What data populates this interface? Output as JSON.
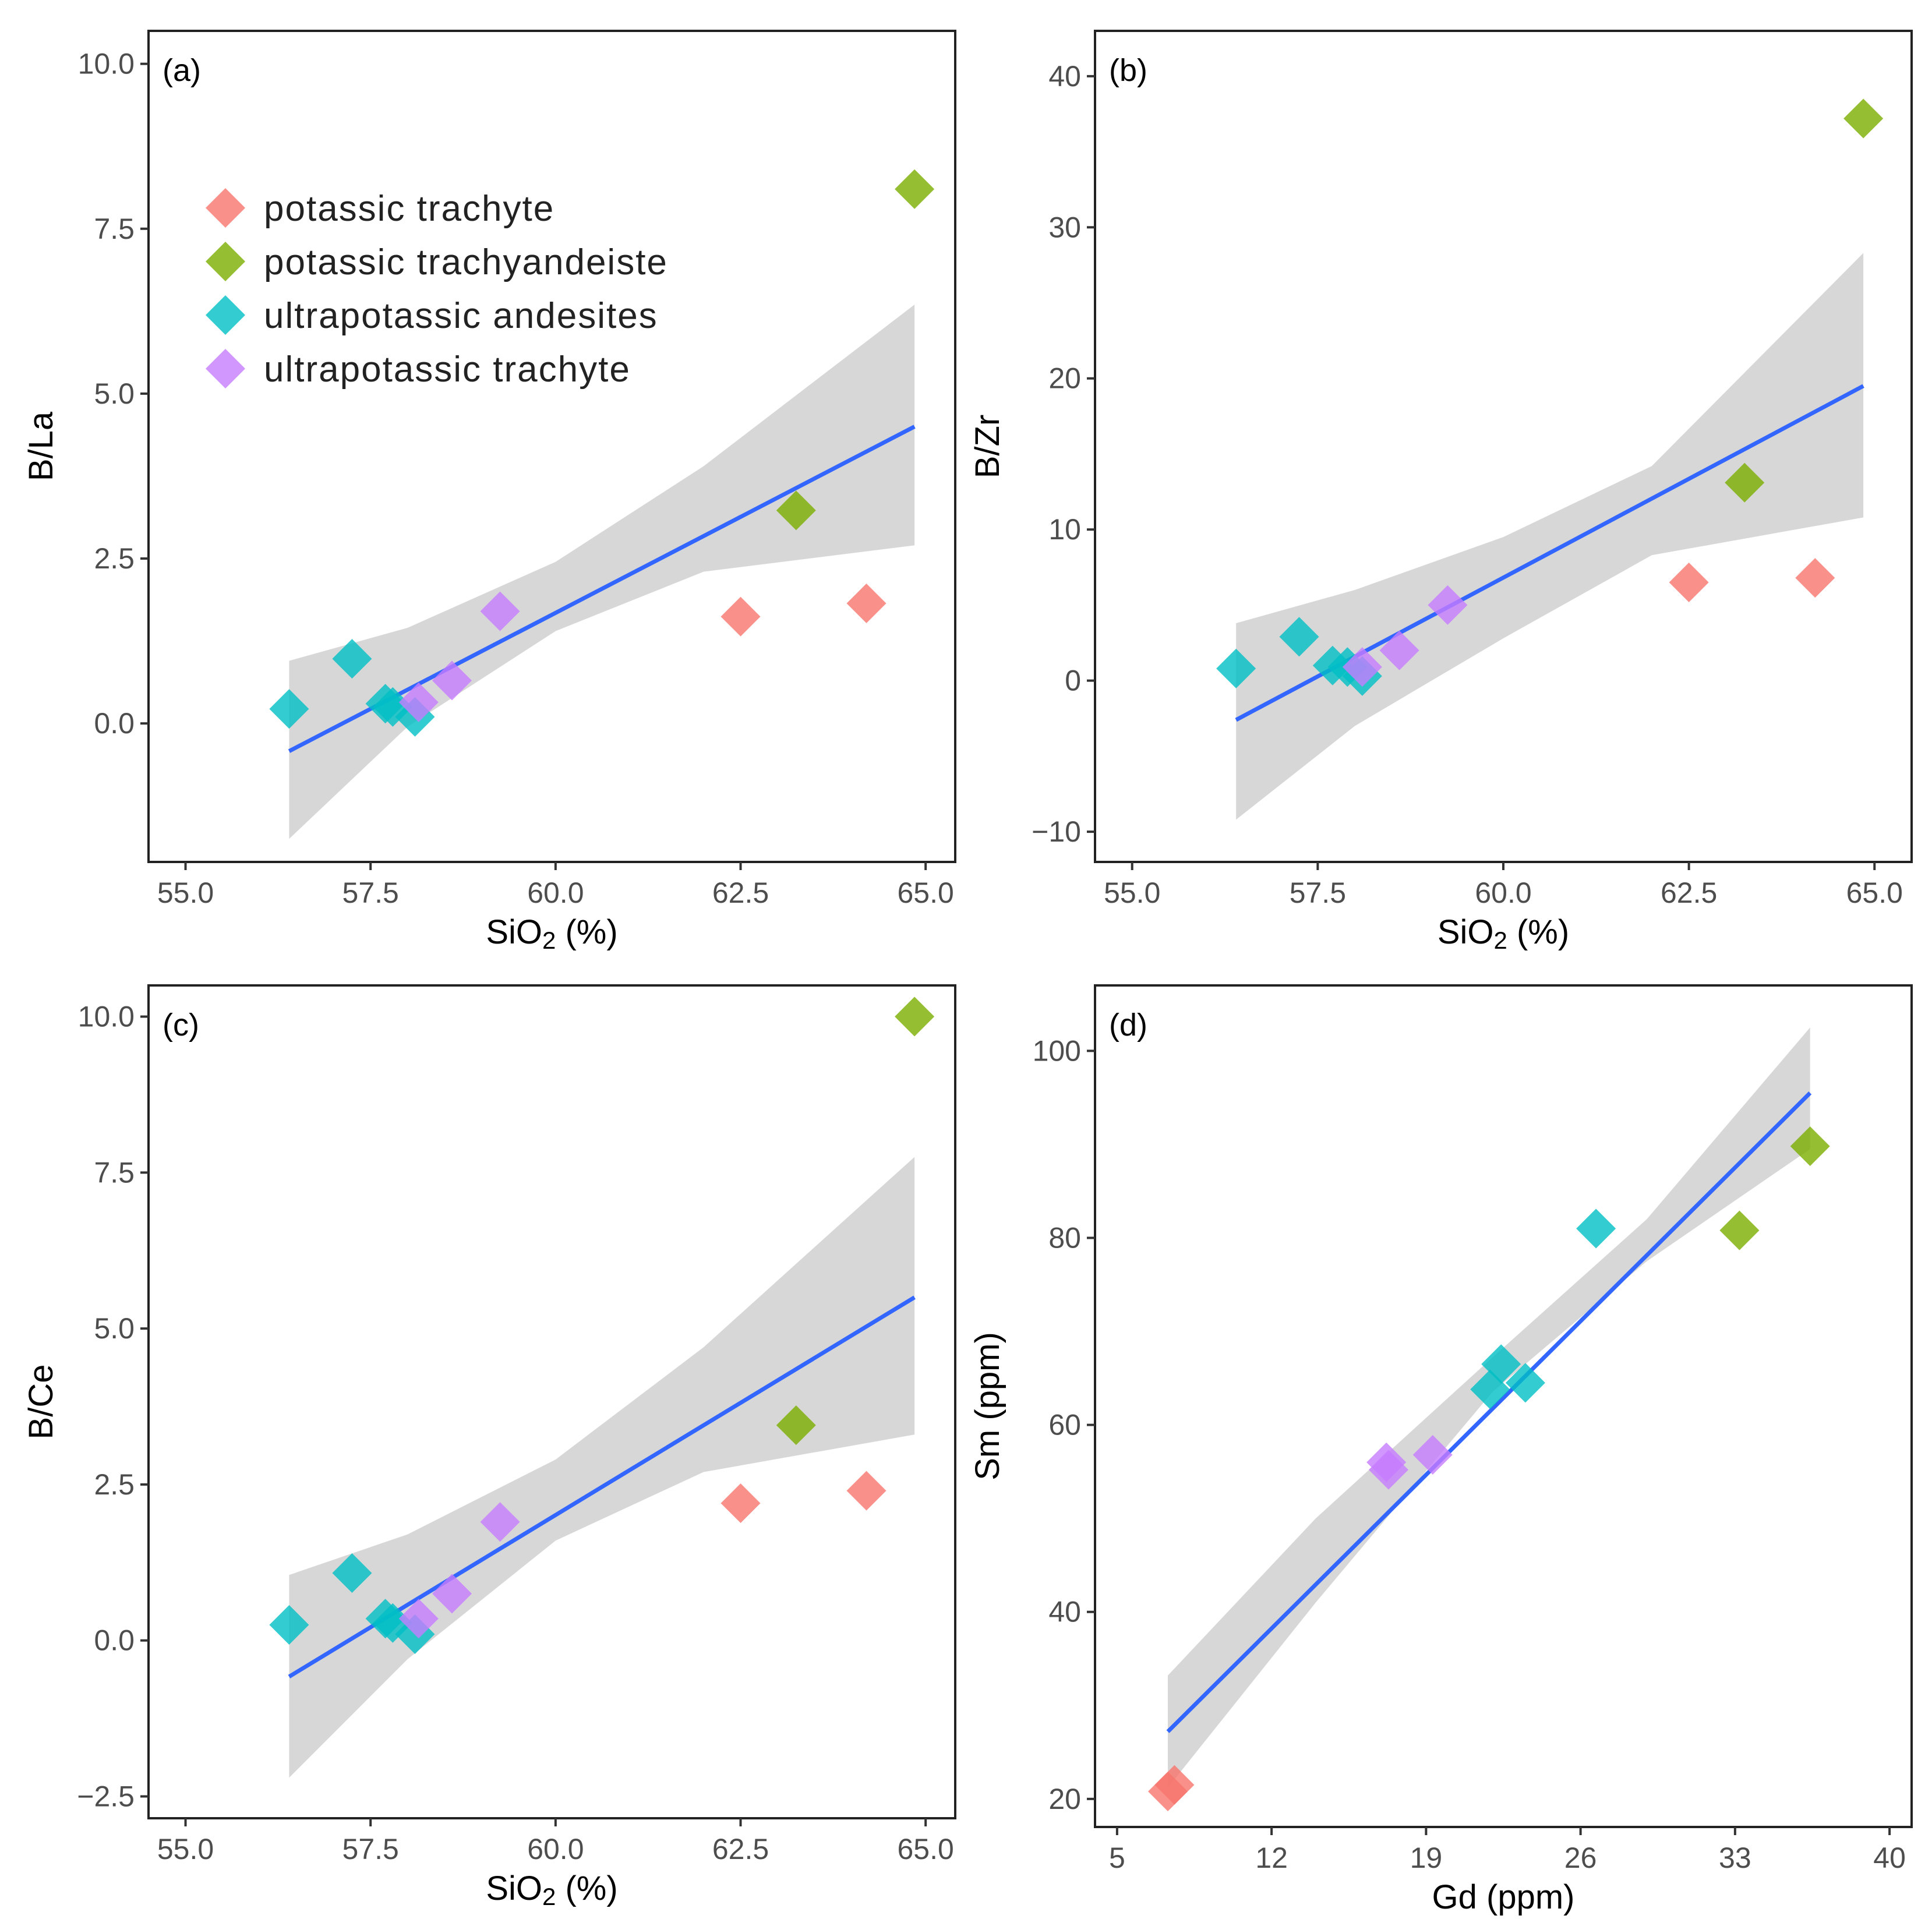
{
  "colors": {
    "potassic_trachyte": "#F8766D",
    "potassic_trachyandeiste": "#7CAE00",
    "ultrapotassic_andesites": "#00BFC4",
    "ultrapotassic_trachyte": "#C77CFF",
    "fit_line": "#3366FF",
    "confidence_band": "#D3D3D3"
  },
  "legend": {
    "items": [
      {
        "key": "potassic_trachyte",
        "label": "potassic trachyte"
      },
      {
        "key": "potassic_trachyandeiste",
        "label": "potassic trachyandeiste"
      },
      {
        "key": "ultrapotassic_andesites",
        "label": "ultrapotassic andesites"
      },
      {
        "key": "ultrapotassic_trachyte",
        "label": "ultrapotassic trachyte"
      }
    ]
  },
  "chart_data": [
    {
      "id": "a",
      "panel_label": "(a)",
      "type": "scatter",
      "xlabel": "SiO2 (%)",
      "ylabel": "B/La",
      "xlim": [
        54.5,
        65.4
      ],
      "ylim": [
        -2.1,
        10.5
      ],
      "xticks": [
        55.0,
        57.5,
        60.0,
        62.5,
        65.0
      ],
      "xtick_labels": [
        "55.0",
        "57.5",
        "60.0",
        "62.5",
        "65.0"
      ],
      "yticks": [
        0.0,
        2.5,
        5.0,
        7.5,
        10.0
      ],
      "ytick_labels": [
        "0.0",
        "2.5",
        "5.0",
        "7.5",
        "10.0"
      ],
      "grid": false,
      "has_legend": true,
      "legend_position": "top-left",
      "points": [
        {
          "group": "ultrapotassic_andesites",
          "x": 56.4,
          "y": 0.22
        },
        {
          "group": "ultrapotassic_andesites",
          "x": 57.25,
          "y": 0.98
        },
        {
          "group": "ultrapotassic_andesites",
          "x": 57.7,
          "y": 0.3
        },
        {
          "group": "ultrapotassic_andesites",
          "x": 57.8,
          "y": 0.25
        },
        {
          "group": "ultrapotassic_andesites",
          "x": 58.1,
          "y": 0.1
        },
        {
          "group": "ultrapotassic_trachyte",
          "x": 58.15,
          "y": 0.32
        },
        {
          "group": "ultrapotassic_trachyte",
          "x": 58.6,
          "y": 0.65
        },
        {
          "group": "ultrapotassic_trachyte",
          "x": 59.25,
          "y": 1.7
        },
        {
          "group": "potassic_trachyte",
          "x": 62.5,
          "y": 1.62
        },
        {
          "group": "potassic_trachyte",
          "x": 64.2,
          "y": 1.82
        },
        {
          "group": "potassic_trachyandeiste",
          "x": 63.25,
          "y": 3.23
        },
        {
          "group": "potassic_trachyandeiste",
          "x": 64.85,
          "y": 8.1
        }
      ],
      "fit": {
        "x": [
          56.4,
          64.85
        ],
        "y": [
          -0.42,
          4.5
        ]
      },
      "band": {
        "x": [
          56.4,
          58.0,
          60.0,
          62.0,
          64.85
        ],
        "lower": [
          -1.75,
          -0.05,
          1.4,
          2.3,
          2.7
        ],
        "upper": [
          0.95,
          1.45,
          2.45,
          3.9,
          6.35
        ]
      }
    },
    {
      "id": "b",
      "panel_label": "(b)",
      "type": "scatter",
      "xlabel": "SiO2 (%)",
      "ylabel": "B/Zr",
      "xlim": [
        54.5,
        65.5
      ],
      "ylim": [
        -12.0,
        43.0
      ],
      "xticks": [
        55.0,
        57.5,
        60.0,
        62.5,
        65.0
      ],
      "xtick_labels": [
        "55.0",
        "57.5",
        "60.0",
        "62.5",
        "65.0"
      ],
      "yticks": [
        -10,
        0,
        10,
        20,
        30,
        40
      ],
      "ytick_labels": [
        "−10",
        "0",
        "10",
        "20",
        "30",
        "40"
      ],
      "grid": false,
      "points": [
        {
          "group": "ultrapotassic_andesites",
          "x": 56.4,
          "y": 0.8
        },
        {
          "group": "ultrapotassic_andesites",
          "x": 57.25,
          "y": 2.9
        },
        {
          "group": "ultrapotassic_andesites",
          "x": 57.7,
          "y": 1.0
        },
        {
          "group": "ultrapotassic_andesites",
          "x": 57.9,
          "y": 0.9
        },
        {
          "group": "ultrapotassic_andesites",
          "x": 58.1,
          "y": 0.3
        },
        {
          "group": "ultrapotassic_trachyte",
          "x": 58.1,
          "y": 0.9
        },
        {
          "group": "ultrapotassic_trachyte",
          "x": 58.6,
          "y": 2.0
        },
        {
          "group": "ultrapotassic_trachyte",
          "x": 59.25,
          "y": 5.0
        },
        {
          "group": "potassic_trachyte",
          "x": 62.5,
          "y": 6.5
        },
        {
          "group": "potassic_trachyte",
          "x": 64.2,
          "y": 6.8
        },
        {
          "group": "potassic_trachyandeiste",
          "x": 63.25,
          "y": 13.1
        },
        {
          "group": "potassic_trachyandeiste",
          "x": 64.85,
          "y": 37.2
        }
      ],
      "fit": {
        "x": [
          56.4,
          64.85
        ],
        "y": [
          -2.6,
          19.5
        ]
      },
      "band": {
        "x": [
          56.4,
          58.0,
          60.0,
          62.0,
          64.85
        ],
        "lower": [
          -9.2,
          -3.0,
          2.8,
          8.3,
          10.8
        ],
        "upper": [
          3.8,
          6.0,
          9.5,
          14.2,
          28.3
        ]
      }
    },
    {
      "id": "c",
      "panel_label": "(c)",
      "type": "scatter",
      "xlabel": "SiO2 (%)",
      "ylabel": "B/Ce",
      "xlim": [
        54.5,
        65.4
      ],
      "ylim": [
        -2.85,
        10.5
      ],
      "xticks": [
        55.0,
        57.5,
        60.0,
        62.5,
        65.0
      ],
      "xtick_labels": [
        "55.0",
        "57.5",
        "60.0",
        "62.5",
        "65.0"
      ],
      "yticks": [
        -2.5,
        0.0,
        2.5,
        5.0,
        7.5,
        10.0
      ],
      "ytick_labels": [
        "−2.5",
        "0.0",
        "2.5",
        "5.0",
        "7.5",
        "10.0"
      ],
      "grid": false,
      "points": [
        {
          "group": "ultrapotassic_andesites",
          "x": 56.4,
          "y": 0.25
        },
        {
          "group": "ultrapotassic_andesites",
          "x": 57.25,
          "y": 1.08
        },
        {
          "group": "ultrapotassic_andesites",
          "x": 57.7,
          "y": 0.35
        },
        {
          "group": "ultrapotassic_andesites",
          "x": 57.8,
          "y": 0.28
        },
        {
          "group": "ultrapotassic_andesites",
          "x": 58.1,
          "y": 0.1
        },
        {
          "group": "ultrapotassic_trachyte",
          "x": 58.15,
          "y": 0.35
        },
        {
          "group": "ultrapotassic_trachyte",
          "x": 58.6,
          "y": 0.75
        },
        {
          "group": "ultrapotassic_trachyte",
          "x": 59.25,
          "y": 1.9
        },
        {
          "group": "potassic_trachyte",
          "x": 62.5,
          "y": 2.2
        },
        {
          "group": "potassic_trachyte",
          "x": 64.2,
          "y": 2.4
        },
        {
          "group": "potassic_trachyandeiste",
          "x": 63.25,
          "y": 3.45
        },
        {
          "group": "potassic_trachyandeiste",
          "x": 64.85,
          "y": 10.0
        }
      ],
      "fit": {
        "x": [
          56.4,
          64.85
        ],
        "y": [
          -0.58,
          5.5
        ]
      },
      "band": {
        "x": [
          56.4,
          58.0,
          60.0,
          62.0,
          64.85
        ],
        "lower": [
          -2.2,
          -0.3,
          1.6,
          2.7,
          3.3
        ],
        "upper": [
          1.05,
          1.7,
          2.9,
          4.7,
          7.75
        ]
      }
    },
    {
      "id": "d",
      "panel_label": "(d)",
      "type": "scatter",
      "xlabel": "Gd (ppm)",
      "ylabel": "Sm (ppm)",
      "xlim": [
        4.0,
        41.0
      ],
      "ylim": [
        17.0,
        107.0
      ],
      "xticks": [
        5,
        12,
        19,
        26,
        33,
        40
      ],
      "xtick_labels": [
        "5",
        "12",
        "19",
        "26",
        "33",
        "40"
      ],
      "yticks": [
        20,
        40,
        60,
        80,
        100
      ],
      "ytick_labels": [
        "20",
        "40",
        "60",
        "80",
        "100"
      ],
      "grid": false,
      "points": [
        {
          "group": "potassic_trachyte",
          "x": 7.3,
          "y": 20.8
        },
        {
          "group": "potassic_trachyte",
          "x": 7.6,
          "y": 21.5
        },
        {
          "group": "ultrapotassic_trachyte",
          "x": 17.2,
          "y": 56.0
        },
        {
          "group": "ultrapotassic_trachyte",
          "x": 17.3,
          "y": 55.2
        },
        {
          "group": "ultrapotassic_trachyte",
          "x": 19.3,
          "y": 56.8
        },
        {
          "group": "ultrapotassic_andesites",
          "x": 21.9,
          "y": 63.8
        },
        {
          "group": "ultrapotassic_andesites",
          "x": 22.4,
          "y": 66.5
        },
        {
          "group": "ultrapotassic_andesites",
          "x": 23.5,
          "y": 64.5
        },
        {
          "group": "ultrapotassic_andesites",
          "x": 26.7,
          "y": 81.0
        },
        {
          "group": "potassic_trachyandeiste",
          "x": 33.2,
          "y": 80.8
        },
        {
          "group": "potassic_trachyandeiste",
          "x": 36.4,
          "y": 89.8
        }
      ],
      "fit": {
        "x": [
          7.3,
          36.4
        ],
        "y": [
          27.2,
          95.5
        ]
      },
      "band": {
        "x": [
          7.3,
          14.0,
          22.0,
          29.0,
          36.4
        ],
        "lower": [
          21.2,
          41.0,
          63.5,
          77.5,
          89.5
        ],
        "upper": [
          33.2,
          50.0,
          67.2,
          82.0,
          102.5
        ]
      }
    }
  ]
}
